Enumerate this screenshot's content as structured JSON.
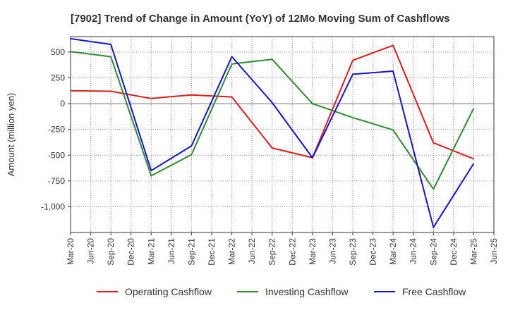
{
  "chart_data": {
    "type": "line",
    "title": "[7902]  Trend of Change in Amount (YoY) of 12Mo Moving Sum of Cashflows",
    "xlabel": "",
    "ylabel": "Amount (million yen)",
    "ylim": [
      -1250,
      650
    ],
    "yticks": [
      500,
      250,
      0,
      -250,
      -500,
      -750,
      -1000
    ],
    "ytick_labels": [
      "500",
      "250",
      "0",
      "-250",
      "-500",
      "-750",
      "-1,000"
    ],
    "categories": [
      "Mar-20",
      "Jun-20",
      "Sep-20",
      "Dec-20",
      "Mar-21",
      "Jun-21",
      "Sep-21",
      "Dec-21",
      "Mar-22",
      "Jun-22",
      "Sep-22",
      "Dec-22",
      "Mar-23",
      "Jun-23",
      "Sep-23",
      "Dec-23",
      "Mar-24",
      "Jun-24",
      "Sep-24",
      "Dec-24",
      "Mar-25",
      "Jun-25"
    ],
    "series": [
      {
        "name": "Operating Cashflow",
        "color": "#e31a1c",
        "values": [
          125,
          null,
          120,
          null,
          50,
          null,
          85,
          null,
          65,
          null,
          -430,
          null,
          -525,
          null,
          420,
          null,
          565,
          null,
          -380,
          null,
          -535,
          null
        ]
      },
      {
        "name": "Investing Cashflow",
        "color": "#2e8b2e",
        "values": [
          505,
          null,
          455,
          null,
          -700,
          null,
          -495,
          null,
          385,
          null,
          430,
          null,
          0,
          null,
          -135,
          null,
          -255,
          null,
          -830,
          null,
          -45,
          null
        ]
      },
      {
        "name": "Free Cashflow",
        "color": "#1414d2",
        "values": [
          630,
          null,
          575,
          null,
          -650,
          null,
          -410,
          null,
          455,
          null,
          10,
          null,
          -525,
          null,
          285,
          null,
          315,
          null,
          -1200,
          null,
          -580,
          null
        ]
      }
    ],
    "grid": true,
    "legend": "bottom"
  }
}
